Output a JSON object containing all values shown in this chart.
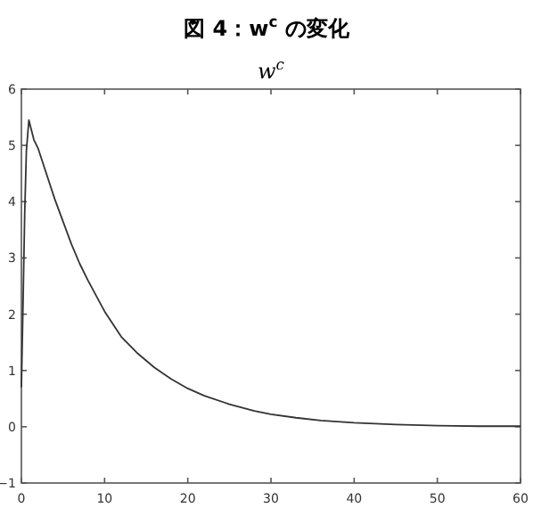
{
  "chart_data": {
    "type": "line",
    "title": "図 4：w$^{c}$ の変化",
    "subtitle": "w$^{c}$",
    "x": [
      0,
      0.2,
      0.4,
      0.6,
      0.9,
      1.5,
      2,
      3,
      4,
      5,
      6,
      7,
      8,
      10,
      12,
      14,
      16,
      18,
      20,
      22,
      25,
      28,
      30,
      33,
      36,
      40,
      45,
      50,
      55,
      60
    ],
    "series": [
      {
        "color": "#333333",
        "values": [
          0.7,
          2.2,
          3.8,
          4.9,
          5.45,
          5.1,
          4.95,
          4.5,
          4.05,
          3.65,
          3.25,
          2.9,
          2.6,
          2.05,
          1.6,
          1.3,
          1.05,
          0.85,
          0.68,
          0.55,
          0.4,
          0.28,
          0.22,
          0.16,
          0.11,
          0.07,
          0.04,
          0.02,
          0.01,
          0.01
        ]
      }
    ],
    "xlim": [
      0,
      60
    ],
    "ylim": [
      -1,
      6
    ],
    "xticks": [
      0,
      10,
      20,
      30,
      40,
      50,
      60
    ],
    "yticks": [
      -1,
      0,
      1,
      2,
      3,
      4,
      5,
      6
    ],
    "grid": false,
    "marker": "none",
    "line_style": "solid"
  }
}
